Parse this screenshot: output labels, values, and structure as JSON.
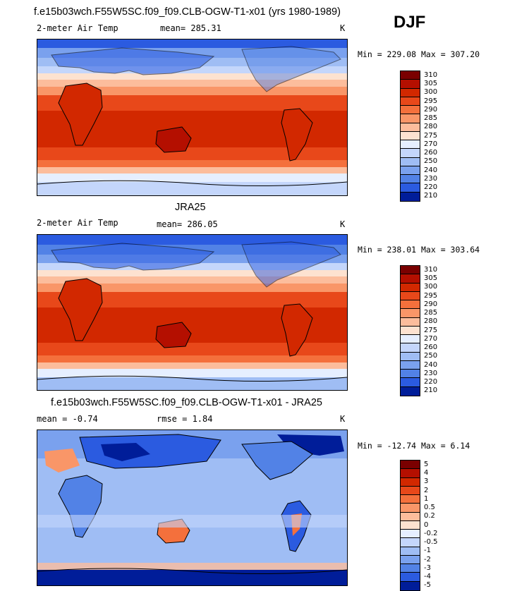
{
  "season": "DJF",
  "colors": {
    "warm": [
      "#7a0000",
      "#b40f00",
      "#d22800",
      "#e8481a",
      "#f4703c",
      "#f99668",
      "#fcbd9c",
      "#fde2d0"
    ],
    "cool": [
      "#e6efff",
      "#c4d6fb",
      "#9fbdf4",
      "#7aa1ee",
      "#5282e6",
      "#2b5be0",
      "#0f33cc",
      "#001d99",
      "#000b6e"
    ],
    "land": "#000000"
  },
  "panels": [
    {
      "title": "f.e15b03wch.F55W5SC.f09_f09.CLB-OGW-T1-x01 (yrs 1980-1989)",
      "variable": "2-meter Air Temp",
      "stat": "mean= 285.31",
      "units": "K",
      "minmax": "Min = 229.08 Max = 307.20",
      "levels": [
        "310",
        "305",
        "300",
        "295",
        "290",
        "285",
        "280",
        "275",
        "270",
        "260",
        "250",
        "240",
        "230",
        "220",
        "210"
      ],
      "level_colors": [
        "#7a0000",
        "#b40f00",
        "#d22800",
        "#e8481a",
        "#f4703c",
        "#f99668",
        "#fcbd9c",
        "#fde2d0",
        "#e6efff",
        "#c4d6fb",
        "#9fbdf4",
        "#7aa1ee",
        "#5282e6",
        "#2b5be0",
        "#001d99"
      ]
    },
    {
      "title": "JRA25",
      "variable": "2-meter Air Temp",
      "stat": "mean= 286.05",
      "units": "K",
      "minmax": "Min = 238.01 Max = 303.64",
      "levels": [
        "310",
        "305",
        "300",
        "295",
        "290",
        "285",
        "280",
        "275",
        "270",
        "260",
        "250",
        "240",
        "230",
        "220",
        "210"
      ],
      "level_colors": [
        "#7a0000",
        "#b40f00",
        "#d22800",
        "#e8481a",
        "#f4703c",
        "#f99668",
        "#fcbd9c",
        "#fde2d0",
        "#e6efff",
        "#c4d6fb",
        "#9fbdf4",
        "#7aa1ee",
        "#5282e6",
        "#2b5be0",
        "#001d99"
      ]
    },
    {
      "title": "f.e15b03wch.F55W5SC.f09_f09.CLB-OGW-T1-x01 - JRA25",
      "variable": "mean =   -0.74",
      "stat": "rmse =    1.84",
      "units": "K",
      "minmax": "Min = -12.74 Max =    6.14",
      "levels": [
        "5",
        "4",
        "3",
        "2",
        "1",
        "0.5",
        "0.2",
        "0",
        "-0.2",
        "-0.5",
        "-1",
        "-2",
        "-3",
        "-4",
        "-5"
      ],
      "level_colors": [
        "#7a0000",
        "#b40f00",
        "#d22800",
        "#e8481a",
        "#f4703c",
        "#f99668",
        "#fcbd9c",
        "#fde2d0",
        "#e6efff",
        "#c4d6fb",
        "#9fbdf4",
        "#7aa1ee",
        "#5282e6",
        "#2b5be0",
        "#001d99"
      ]
    }
  ]
}
